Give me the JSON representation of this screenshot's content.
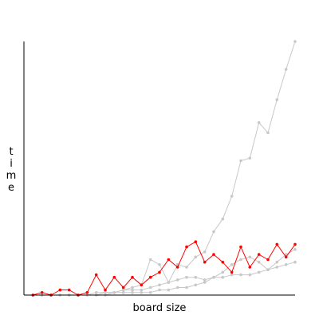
{
  "chart_data": {
    "type": "line",
    "xlabel": "board size",
    "ylabel": "time",
    "x": [
      1,
      2,
      3,
      4,
      5,
      6,
      7,
      8,
      9,
      10,
      11,
      12,
      13,
      14,
      15,
      16,
      17,
      18,
      19,
      20,
      21,
      22,
      23,
      24,
      25,
      26,
      27,
      28,
      29,
      30
    ],
    "xlim": [
      0,
      30
    ],
    "ylim": [
      0,
      100
    ],
    "grid": false,
    "series": [
      {
        "color": "#c8c8c8",
        "values": [
          0,
          0,
          0,
          0,
          0,
          0,
          0,
          0,
          1,
          1,
          2,
          2,
          2,
          3,
          4,
          5,
          6,
          7,
          7,
          6,
          7,
          7,
          8,
          8,
          8,
          9,
          10,
          11,
          12,
          13
        ]
      },
      {
        "color": "#c8c8c8",
        "values": [
          0,
          0,
          0,
          0,
          0,
          0,
          0,
          1,
          1,
          1,
          2,
          3,
          4,
          14,
          12,
          5,
          12,
          11,
          15,
          17,
          25,
          30,
          39,
          53,
          54,
          68,
          64,
          77,
          89,
          100
        ]
      },
      {
        "color": "#c8c8c8",
        "values": [
          0,
          0,
          0,
          0,
          0,
          0,
          0,
          0,
          0,
          1,
          1,
          1,
          1,
          1,
          2,
          2,
          3,
          3,
          4,
          5,
          7,
          9,
          12,
          14,
          15,
          13,
          10,
          13,
          16,
          18
        ]
      },
      {
        "color": "#ff0000",
        "values": [
          0,
          1,
          0,
          2,
          2,
          0,
          1,
          8,
          2,
          7,
          3,
          7,
          4,
          7,
          9,
          14,
          11,
          19,
          21,
          13,
          16,
          13,
          9,
          19,
          11,
          16,
          14,
          20,
          15,
          20
        ]
      }
    ]
  }
}
